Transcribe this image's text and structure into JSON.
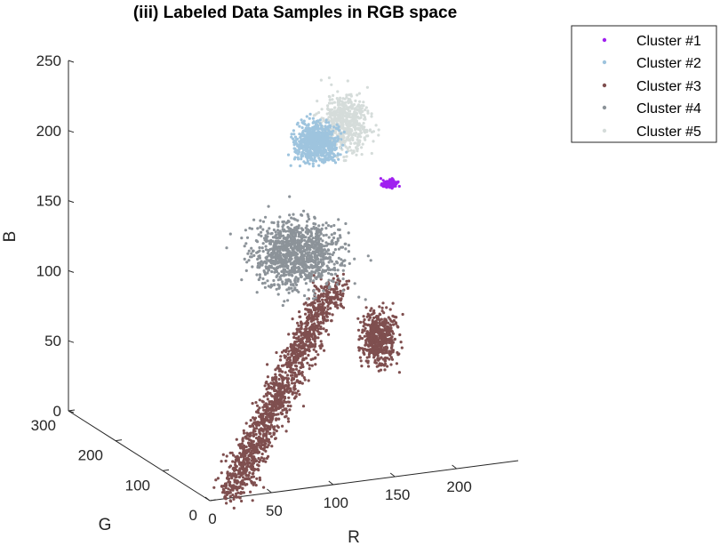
{
  "chart_data": {
    "type": "scatter",
    "projection": "3d",
    "title": "(iii) Labeled Data Samples in RGB space",
    "axes": {
      "x": {
        "label": "R",
        "ticks": [
          0,
          50,
          100,
          150,
          200
        ],
        "range": [
          0,
          250
        ]
      },
      "y": {
        "label": "G",
        "ticks": [
          0,
          100,
          200,
          300
        ],
        "range": [
          0,
          300
        ]
      },
      "z": {
        "label": "B",
        "ticks": [
          0,
          50,
          100,
          150,
          200,
          250
        ],
        "range": [
          0,
          250
        ]
      }
    },
    "grid": false,
    "legend_position": "outside top-right",
    "series": [
      {
        "name": "Cluster #1",
        "color": "#a020f0",
        "regions": [
          {
            "R": [
              190,
              210
            ],
            "G": [
              135,
              150
            ],
            "B": [
              168,
              178
            ],
            "n": 120
          }
        ]
      },
      {
        "name": "Cluster #2",
        "color": "#9ec4de",
        "regions": [
          {
            "R": [
              120,
              175
            ],
            "G": [
              130,
              190
            ],
            "B": [
              180,
              230
            ],
            "n": 700
          }
        ]
      },
      {
        "name": "Cluster #3",
        "color": "#7f4f4f",
        "regions": [
          {
            "R": [
              20,
              150
            ],
            "G": [
              10,
              130
            ],
            "B": [
              0,
              110
            ],
            "n": 1500
          },
          {
            "R": [
              150,
              200
            ],
            "G": [
              70,
              130
            ],
            "B": [
              40,
              110
            ],
            "n": 500
          }
        ]
      },
      {
        "name": "Cluster #4",
        "color": "#8c9399",
        "regions": [
          {
            "R": [
              60,
              180
            ],
            "G": [
              60,
              200
            ],
            "B": [
              95,
              175
            ],
            "n": 1100
          }
        ]
      },
      {
        "name": "Cluster #5",
        "color": "#d5dcda",
        "regions": [
          {
            "R": [
              150,
              210
            ],
            "G": [
              140,
              230
            ],
            "B": [
              175,
              245
            ],
            "n": 600
          }
        ]
      }
    ]
  }
}
